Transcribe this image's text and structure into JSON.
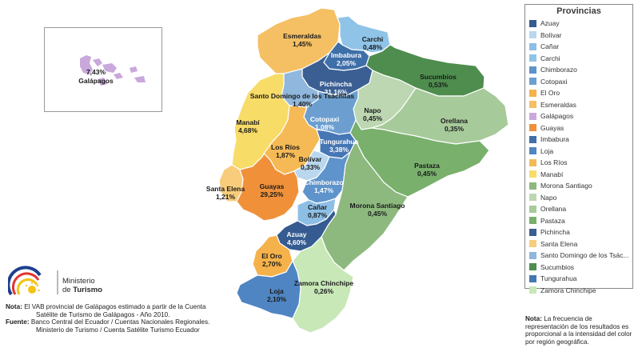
{
  "map": {
    "regions": [
      {
        "name": "Esmeraldas",
        "value": "1,45%",
        "color": "#f5bf63"
      },
      {
        "name": "Carchi",
        "value": "0,48%",
        "color": "#8fc4e8"
      },
      {
        "name": "Imbabura",
        "value": "2,05%",
        "color": "#3f6fa8"
      },
      {
        "name": "Sucumbios",
        "value": "0,53%",
        "color": "#4e8d4e"
      },
      {
        "name": "Pichincha",
        "value": "31,16%",
        "color": "#3b5f93"
      },
      {
        "name": "Santo Domingo de los Tsáchilas",
        "value": "1,40%",
        "color": "#90b7dd"
      },
      {
        "name": "Napo",
        "value": "0,45%",
        "color": "#bcd7b1"
      },
      {
        "name": "Orellana",
        "value": "0,35%",
        "color": "#a7ca9b"
      },
      {
        "name": "Manabí",
        "value": "4,68%",
        "color": "#f8dc68"
      },
      {
        "name": "Cotopaxi",
        "value": "1,08%",
        "color": "#6c9fd0"
      },
      {
        "name": "Los Ríos",
        "value": "1,87%",
        "color": "#f5ba55"
      },
      {
        "name": "Tungurahua",
        "value": "3,38%",
        "color": "#4676b4"
      },
      {
        "name": "Bolívar",
        "value": "0,33%",
        "color": "#b9d7ee"
      },
      {
        "name": "Pastaza",
        "value": "0,45%",
        "color": "#78b06c"
      },
      {
        "name": "Santa Elena",
        "value": "1,21%",
        "color": "#f8cc7a"
      },
      {
        "name": "Guayas",
        "value": "29,25%",
        "color": "#f0913a"
      },
      {
        "name": "Chimborazo",
        "value": "1,47%",
        "color": "#5f93cb"
      },
      {
        "name": "Morona Santiago",
        "value": "0,45%",
        "color": "#8db97f"
      },
      {
        "name": "Cañar",
        "value": "0,87%",
        "color": "#8dbfe6"
      },
      {
        "name": "Azuay",
        "value": "4,60%",
        "color": "#355b91"
      },
      {
        "name": "El Oro",
        "value": "2,70%",
        "color": "#f5b24b"
      },
      {
        "name": "Zamora Chinchipe",
        "value": "0,26%",
        "color": "#c8e8b8"
      },
      {
        "name": "Loja",
        "value": "2,10%",
        "color": "#4f85c2"
      }
    ],
    "galapagos": {
      "name": "Galápagos",
      "value": "7,43%",
      "color": "#c9a8dc"
    }
  },
  "legend": {
    "title": "Provincias",
    "items": [
      {
        "label": "Azuay",
        "color": "#355b91"
      },
      {
        "label": "Bolívar",
        "color": "#b9d7ee"
      },
      {
        "label": "Cañar",
        "color": "#8dbfe6"
      },
      {
        "label": "Carchi",
        "color": "#8fc4e8"
      },
      {
        "label": "Chimborazo",
        "color": "#5f93cb"
      },
      {
        "label": "Cotopaxi",
        "color": "#6c9fd0"
      },
      {
        "label": "El Oro",
        "color": "#f5b24b"
      },
      {
        "label": "Esmeraldas",
        "color": "#f5bf63"
      },
      {
        "label": "Galápagos",
        "color": "#c9a8dc"
      },
      {
        "label": "Guayas",
        "color": "#f0913a"
      },
      {
        "label": "Imbabura",
        "color": "#3f6fa8"
      },
      {
        "label": "Loja",
        "color": "#4f85c2"
      },
      {
        "label": "Los Ríos",
        "color": "#f5ba55"
      },
      {
        "label": "Manabí",
        "color": "#f8dc68"
      },
      {
        "label": "Morona Santiago",
        "color": "#8db97f"
      },
      {
        "label": "Napo",
        "color": "#bcd7b1"
      },
      {
        "label": "Orellana",
        "color": "#a7ca9b"
      },
      {
        "label": "Pastaza",
        "color": "#78b06c"
      },
      {
        "label": "Pichincha",
        "color": "#3b5f93"
      },
      {
        "label": "Santa Elena",
        "color": "#f8cc7a"
      },
      {
        "label": "Santo Domingo de los Tsác...",
        "color": "#90b7dd"
      },
      {
        "label": "Sucumbios",
        "color": "#4e8d4e"
      },
      {
        "label": "Tungurahua",
        "color": "#4676b4"
      },
      {
        "label": "Zamora Chinchipe",
        "color": "#c8e8b8"
      }
    ]
  },
  "logo": {
    "line1": "Ministerio",
    "line2_pre": "de ",
    "line2_bold": "Turismo"
  },
  "notes": {
    "note_label": "Nota:",
    "note_text": " El VAB provincial de Galápagos estimado a partir de la Cuenta",
    "note_text2": "Satélite de Turismo de Galápagos - Año 2010.",
    "source_label": "Fuente:",
    "source_text": " Banco Central del Ecuador / Cuentas Nacionales Regionales.",
    "source_text2": "Ministerio de Turismo / Cuenta Satélite Turismo Ecuador"
  },
  "right_note": {
    "label": "Nota:",
    "text": " La frecuencia de representación de los resultados es proporcional a la intensidad del color por región geográfica."
  }
}
